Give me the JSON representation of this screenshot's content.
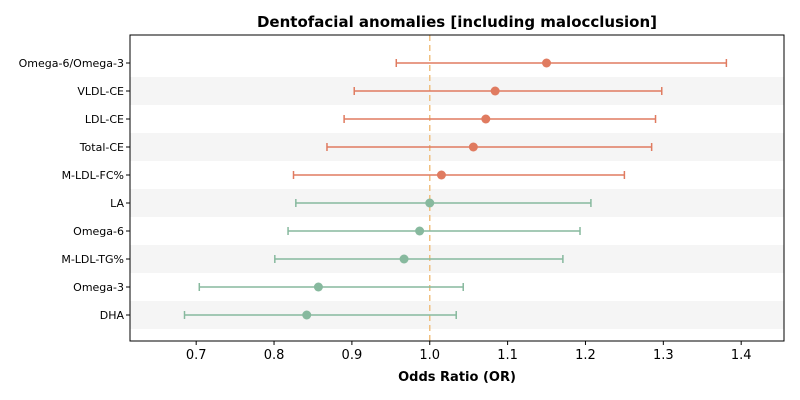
{
  "chart_data": {
    "type": "forest",
    "title": "Dentofacial anomalies [including malocclusion]",
    "xlabel": "Odds Ratio (OR)",
    "xlim": [
      0.615,
      1.455
    ],
    "xticks": [
      0.7,
      0.8,
      0.9,
      1.0,
      1.1,
      1.2,
      1.3,
      1.4
    ],
    "xtick_labels": [
      "0.7",
      "0.8",
      "0.9",
      "1.0",
      "1.1",
      "1.2",
      "1.3",
      "1.4"
    ],
    "reference_line": 1.0,
    "colors": {
      "increased": "#e07b60",
      "decreased": "#87b99e",
      "reference": "#f0c080",
      "band": "#f5f5f5"
    },
    "grid": false,
    "rows": [
      {
        "label": "Omega-6/Omega-3",
        "or": 1.15,
        "lower": 0.957,
        "upper": 1.381,
        "group": "increased"
      },
      {
        "label": "VLDL-CE",
        "or": 1.084,
        "lower": 0.903,
        "upper": 1.298,
        "group": "increased"
      },
      {
        "label": "LDL-CE",
        "or": 1.072,
        "lower": 0.89,
        "upper": 1.29,
        "group": "increased"
      },
      {
        "label": "Total-CE",
        "or": 1.056,
        "lower": 0.868,
        "upper": 1.285,
        "group": "increased"
      },
      {
        "label": "M-LDL-FC%",
        "or": 1.015,
        "lower": 0.825,
        "upper": 1.25,
        "group": "increased"
      },
      {
        "label": "LA",
        "or": 1.0,
        "lower": 0.828,
        "upper": 1.207,
        "group": "decreased"
      },
      {
        "label": "Omega-6",
        "or": 0.987,
        "lower": 0.818,
        "upper": 1.193,
        "group": "decreased"
      },
      {
        "label": "M-LDL-TG%",
        "or": 0.967,
        "lower": 0.801,
        "upper": 1.171,
        "group": "decreased"
      },
      {
        "label": "Omega-3",
        "or": 0.857,
        "lower": 0.704,
        "upper": 1.043,
        "group": "decreased"
      },
      {
        "label": "DHA",
        "or": 0.842,
        "lower": 0.685,
        "upper": 1.034,
        "group": "decreased"
      }
    ]
  }
}
